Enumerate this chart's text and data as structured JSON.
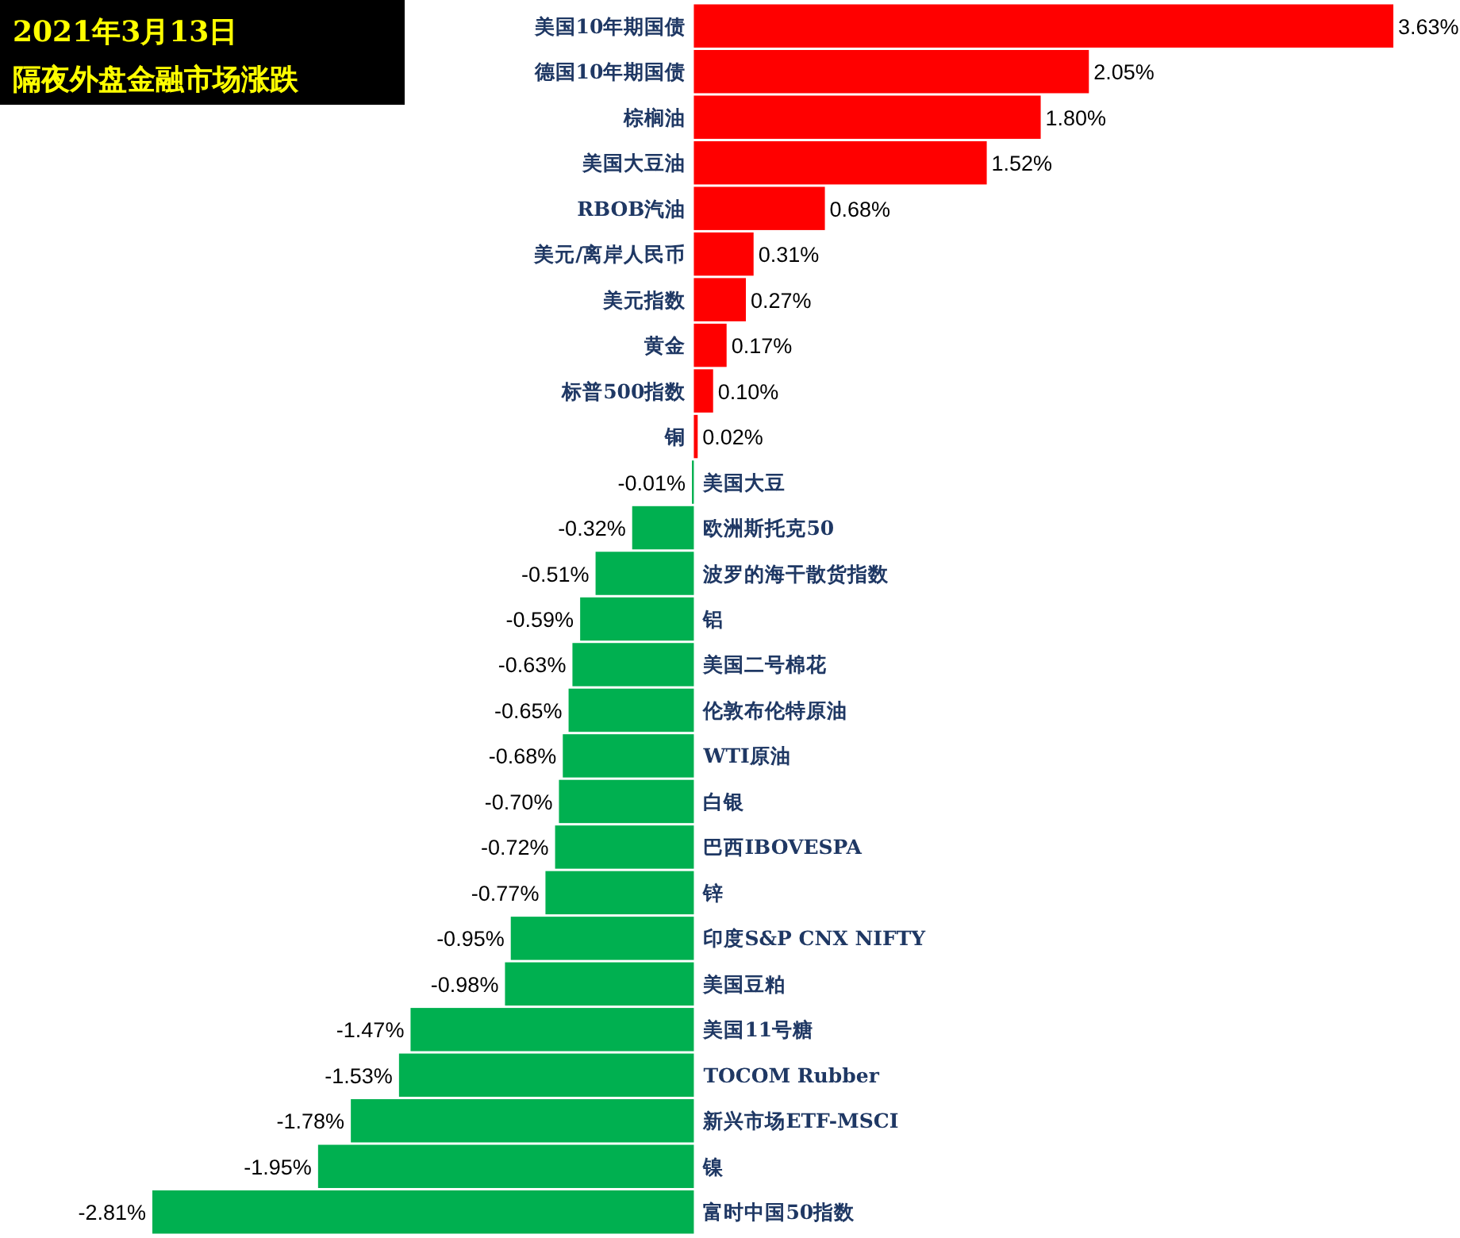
{
  "chart_data": {
    "type": "bar",
    "orientation": "horizontal",
    "title": "2021年3月13日",
    "subtitle": "隔夜外盘金融市场涨跌",
    "categories": [
      "美国10年期国债",
      "德国10年期国债",
      "棕榈油",
      "美国大豆油",
      "RBOB汽油",
      "美元/离岸人民币",
      "美元指数",
      "黄金",
      "标普500指数",
      "铜",
      "美国大豆",
      "欧洲斯托克50",
      "波罗的海干散货指数",
      "铝",
      "美国二号棉花",
      "伦敦布伦特原油",
      "WTI原油",
      "白银",
      "巴西IBOVESPA",
      "锌",
      "印度S&P CNX NIFTY",
      "美国豆粕",
      "美国11号糖",
      "TOCOM Rubber",
      "新兴市场ETF-MSCI",
      "镍",
      "富时中国50指数"
    ],
    "values": [
      3.63,
      2.05,
      1.8,
      1.52,
      0.68,
      0.31,
      0.27,
      0.17,
      0.1,
      0.02,
      -0.01,
      -0.32,
      -0.51,
      -0.59,
      -0.63,
      -0.65,
      -0.68,
      -0.7,
      -0.72,
      -0.77,
      -0.95,
      -0.98,
      -1.47,
      -1.53,
      -1.78,
      -1.95,
      -2.81
    ],
    "value_labels": [
      "3.63%",
      "2.05%",
      "1.80%",
      "1.52%",
      "0.68%",
      "0.31%",
      "0.27%",
      "0.17%",
      "0.10%",
      "0.02%",
      "-0.01%",
      "-0.32%",
      "-0.51%",
      "-0.59%",
      "-0.63%",
      "-0.65%",
      "-0.68%",
      "-0.70%",
      "-0.72%",
      "-0.77%",
      "-0.95%",
      "-0.98%",
      "-1.47%",
      "-1.53%",
      "-1.78%",
      "-1.95%",
      "-2.81%"
    ],
    "colors": [
      "#ff0000",
      "#ff0000",
      "#ff0000",
      "#ff0000",
      "#ff0000",
      "#ff0000",
      "#ff0000",
      "#ff0000",
      "#ff0000",
      "#ff0000",
      "#00b050",
      "#00b050",
      "#00b050",
      "#00b050",
      "#00b050",
      "#00b050",
      "#00b050",
      "#00b050",
      "#00b050",
      "#00b050",
      "#00b050",
      "#00b050",
      "#00b050",
      "#00b050",
      "#00b050",
      "#00b050",
      "#00b050"
    ]
  }
}
